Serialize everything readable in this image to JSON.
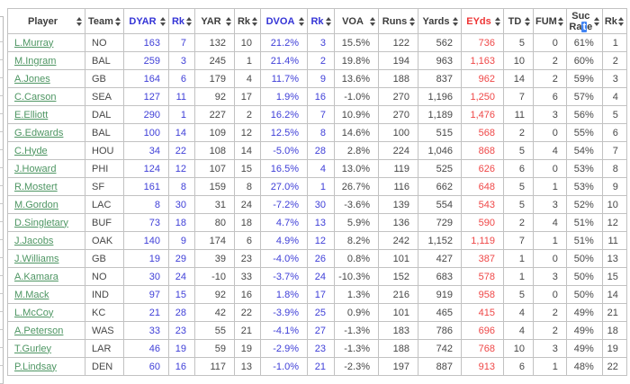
{
  "colors": {
    "link_green": "#4e9663",
    "stat_blue": "#4040d8",
    "stat_red": "#ef4747",
    "header_blue": "#3434d6",
    "header_red": "#ee3434",
    "selection_blue": "#4285f4"
  },
  "table": {
    "sort_icon": "sort-up-down-icon",
    "columns": [
      {
        "label": "Player",
        "color": "default",
        "type": "link"
      },
      {
        "label": "Team",
        "color": "default",
        "type": "text"
      },
      {
        "label": "DYAR",
        "color": "blue",
        "type": "num"
      },
      {
        "label": "Rk",
        "color": "blue",
        "type": "num"
      },
      {
        "label": "YAR",
        "color": "default",
        "type": "num"
      },
      {
        "label": "Rk",
        "color": "default",
        "type": "num"
      },
      {
        "label": "DVOA",
        "color": "blue",
        "type": "num"
      },
      {
        "label": "Rk",
        "color": "blue",
        "type": "num"
      },
      {
        "label": "VOA",
        "color": "default",
        "type": "num"
      },
      {
        "label": "Runs",
        "color": "default",
        "type": "num"
      },
      {
        "label": "Yards",
        "color": "default",
        "type": "num"
      },
      {
        "label": "EYds",
        "color": "red",
        "type": "num"
      },
      {
        "label": "TD",
        "color": "default",
        "type": "num"
      },
      {
        "label": "FUM",
        "color": "default",
        "type": "num"
      },
      {
        "label": "Suc Rate",
        "color": "default",
        "type": "num"
      },
      {
        "label": "Rk",
        "color": "default",
        "type": "num"
      }
    ],
    "suc_header": {
      "line1": "Suc",
      "line2_pre": "Ra",
      "line2_selected": "t",
      "line2_post": "e"
    },
    "column_colors": [
      "link",
      "default",
      "blue",
      "blue",
      "default",
      "default",
      "blue",
      "blue",
      "default",
      "default",
      "default",
      "red",
      "default",
      "default",
      "default",
      "default"
    ],
    "rows": [
      [
        "L.Murray",
        "NO",
        "163",
        "7",
        "132",
        "10",
        "21.2%",
        "3",
        "15.5%",
        "122",
        "562",
        "736",
        "5",
        "0",
        "61%",
        "1"
      ],
      [
        "M.Ingram",
        "BAL",
        "259",
        "3",
        "245",
        "1",
        "21.4%",
        "2",
        "19.8%",
        "194",
        "963",
        "1,163",
        "10",
        "2",
        "60%",
        "2"
      ],
      [
        "A.Jones",
        "GB",
        "164",
        "6",
        "179",
        "4",
        "11.7%",
        "9",
        "13.6%",
        "188",
        "837",
        "962",
        "14",
        "2",
        "59%",
        "3"
      ],
      [
        "C.Carson",
        "SEA",
        "127",
        "11",
        "92",
        "17",
        "1.9%",
        "16",
        "-1.0%",
        "270",
        "1,196",
        "1,250",
        "7",
        "6",
        "57%",
        "4"
      ],
      [
        "E.Elliott",
        "DAL",
        "290",
        "1",
        "227",
        "2",
        "16.2%",
        "7",
        "10.9%",
        "270",
        "1,189",
        "1,476",
        "11",
        "3",
        "56%",
        "5"
      ],
      [
        "G.Edwards",
        "BAL",
        "100",
        "14",
        "109",
        "12",
        "12.5%",
        "8",
        "14.6%",
        "100",
        "515",
        "568",
        "2",
        "0",
        "55%",
        "6"
      ],
      [
        "C.Hyde",
        "HOU",
        "34",
        "22",
        "108",
        "14",
        "-5.0%",
        "28",
        "2.8%",
        "224",
        "1,046",
        "868",
        "5",
        "4",
        "54%",
        "7"
      ],
      [
        "J.Howard",
        "PHI",
        "124",
        "12",
        "107",
        "15",
        "16.5%",
        "4",
        "13.0%",
        "119",
        "525",
        "626",
        "6",
        "0",
        "53%",
        "8"
      ],
      [
        "R.Mostert",
        "SF",
        "161",
        "8",
        "159",
        "8",
        "27.0%",
        "1",
        "26.7%",
        "116",
        "662",
        "648",
        "5",
        "1",
        "53%",
        "9"
      ],
      [
        "M.Gordon",
        "LAC",
        "8",
        "30",
        "31",
        "24",
        "-7.2%",
        "30",
        "-3.6%",
        "139",
        "554",
        "543",
        "5",
        "3",
        "52%",
        "10"
      ],
      [
        "D.Singletary",
        "BUF",
        "73",
        "18",
        "80",
        "18",
        "4.7%",
        "13",
        "5.9%",
        "136",
        "729",
        "590",
        "2",
        "4",
        "51%",
        "12"
      ],
      [
        "J.Jacobs",
        "OAK",
        "140",
        "9",
        "174",
        "6",
        "4.9%",
        "12",
        "8.2%",
        "242",
        "1,152",
        "1,119",
        "7",
        "1",
        "51%",
        "11"
      ],
      [
        "J.Williams",
        "GB",
        "19",
        "29",
        "39",
        "23",
        "-4.0%",
        "26",
        "0.8%",
        "101",
        "427",
        "387",
        "1",
        "0",
        "50%",
        "13"
      ],
      [
        "A.Kamara",
        "NO",
        "30",
        "24",
        "-10",
        "33",
        "-3.7%",
        "24",
        "-10.3%",
        "152",
        "683",
        "578",
        "1",
        "3",
        "50%",
        "15"
      ],
      [
        "M.Mack",
        "IND",
        "97",
        "15",
        "92",
        "16",
        "1.8%",
        "17",
        "1.3%",
        "216",
        "919",
        "958",
        "5",
        "0",
        "50%",
        "14"
      ],
      [
        "L.McCoy",
        "KC",
        "21",
        "28",
        "42",
        "22",
        "-3.9%",
        "25",
        "0.9%",
        "101",
        "465",
        "415",
        "4",
        "2",
        "49%",
        "21"
      ],
      [
        "A.Peterson",
        "WAS",
        "33",
        "23",
        "55",
        "21",
        "-4.1%",
        "27",
        "-1.3%",
        "183",
        "786",
        "696",
        "4",
        "2",
        "49%",
        "18"
      ],
      [
        "T.Gurley",
        "LAR",
        "46",
        "19",
        "59",
        "19",
        "-2.9%",
        "23",
        "-1.3%",
        "188",
        "742",
        "768",
        "10",
        "3",
        "49%",
        "19"
      ],
      [
        "P.Lindsay",
        "DEN",
        "60",
        "16",
        "117",
        "13",
        "-1.0%",
        "21",
        "-2.3%",
        "197",
        "887",
        "913",
        "6",
        "1",
        "48%",
        "22"
      ]
    ]
  }
}
